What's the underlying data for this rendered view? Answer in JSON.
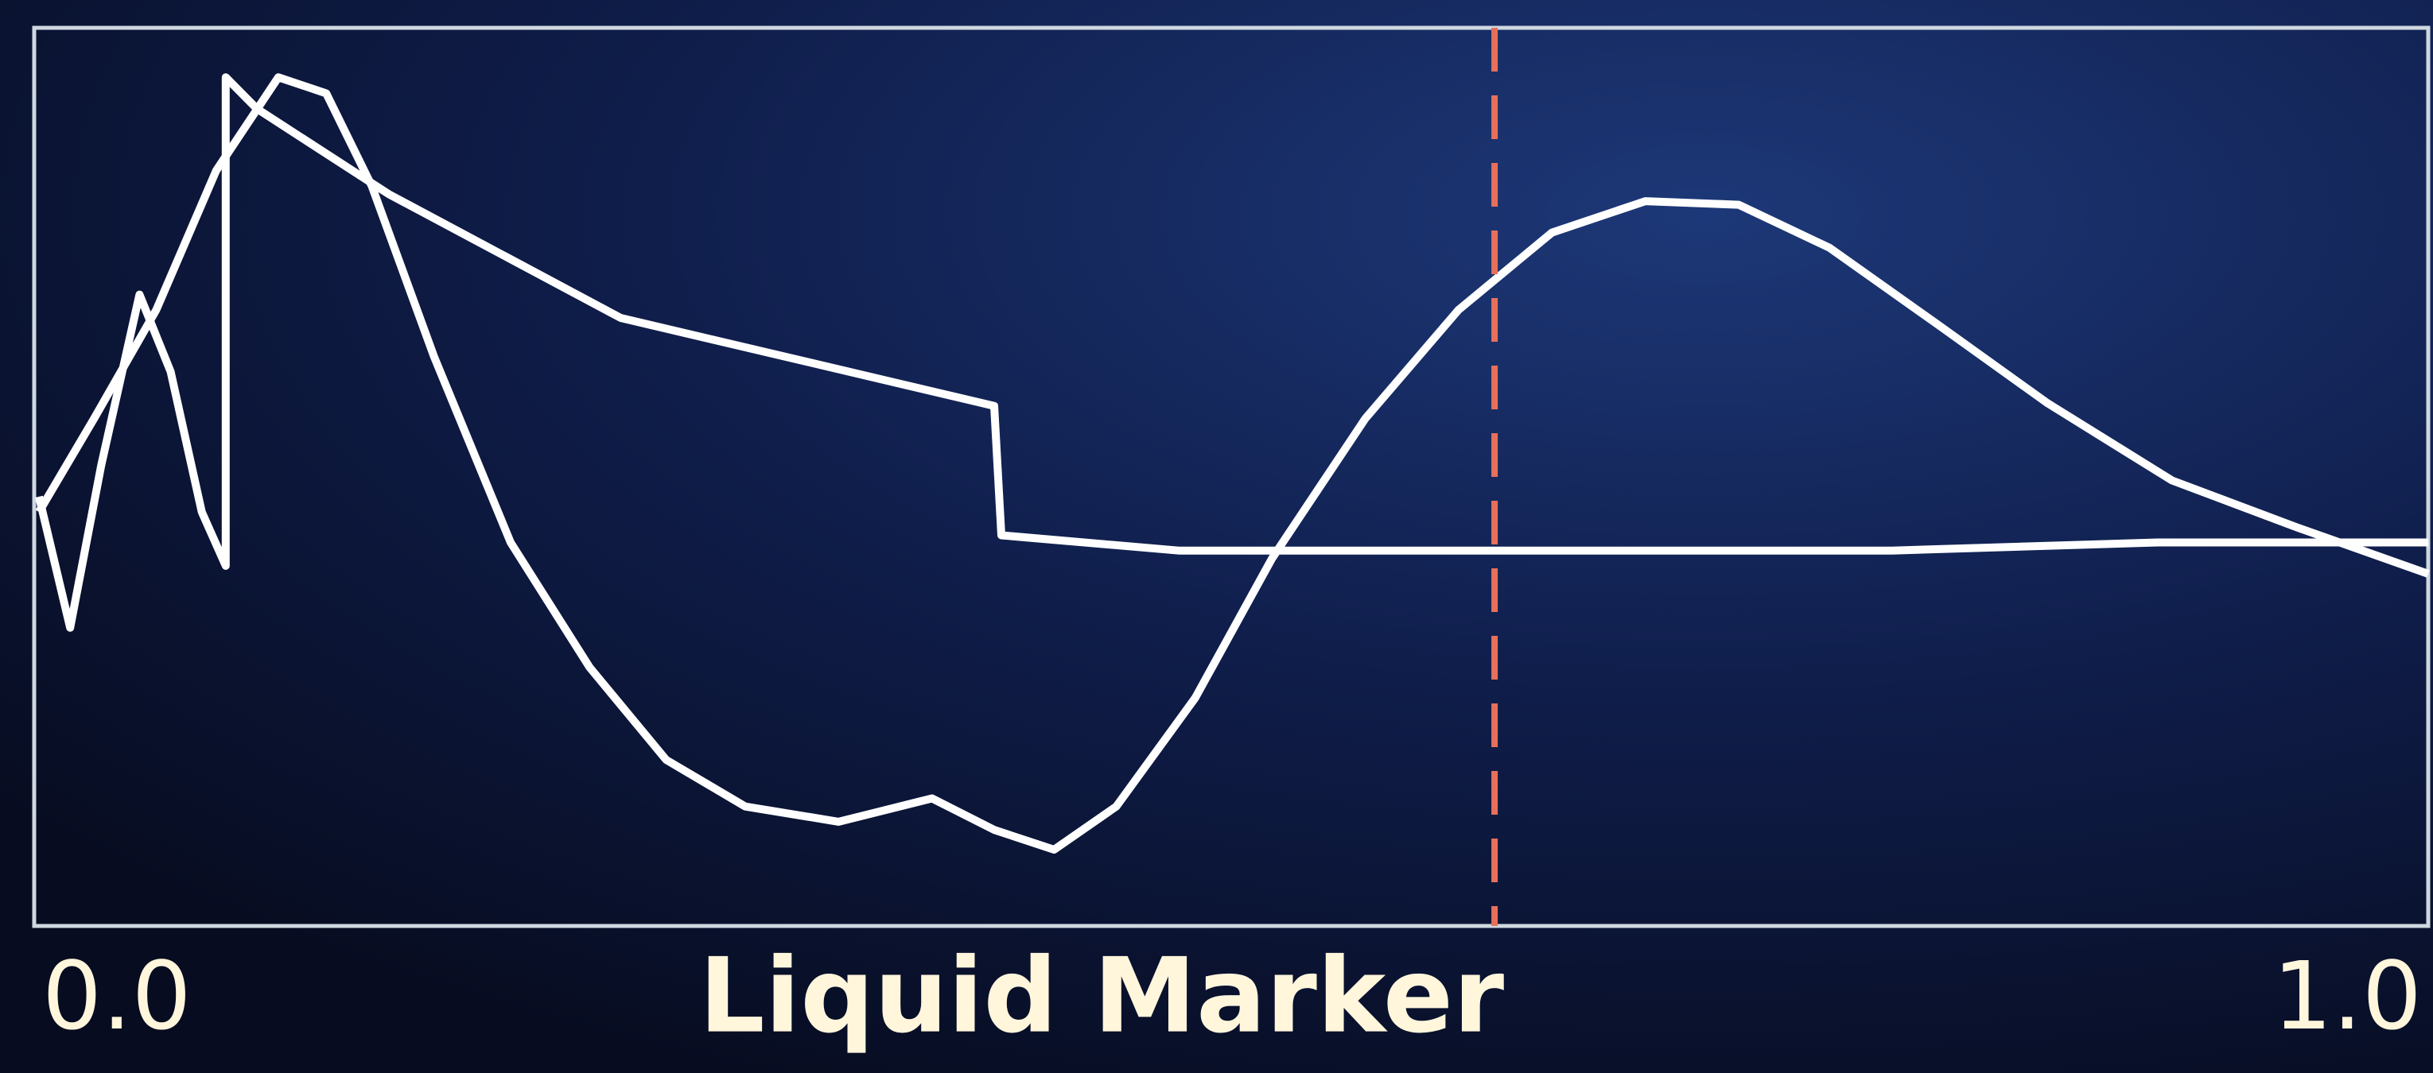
{
  "chart_data": {
    "type": "line",
    "xlabel": "Liquid Marker",
    "xlim": [
      0,
      1
    ],
    "xticks": [
      {
        "value": 0,
        "label": "0.0"
      },
      {
        "value": 1,
        "label": "1.0"
      }
    ],
    "ylim": [
      0,
      1
    ],
    "marker_x": 0.61,
    "marker_color": "#e8705a",
    "series": [
      {
        "color": "#ffffff",
        "x": [
          0.002,
          0.025,
          0.051,
          0.076,
          0.102,
          0.122,
          0.141,
          0.167,
          0.199,
          0.232,
          0.264,
          0.297,
          0.336,
          0.375,
          0.401,
          0.426,
          0.452,
          0.485,
          0.517,
          0.556,
          0.595,
          0.634,
          0.673,
          0.712,
          0.75,
          0.796,
          0.841,
          0.893,
          0.945,
          1.0
        ],
        "values": [
          0.461,
          0.565,
          0.686,
          0.841,
          0.945,
          0.927,
          0.824,
          0.634,
          0.427,
          0.288,
          0.185,
          0.133,
          0.116,
          0.142,
          0.107,
          0.085,
          0.133,
          0.254,
          0.409,
          0.565,
          0.686,
          0.772,
          0.807,
          0.803,
          0.755,
          0.668,
          0.582,
          0.496,
          0.444,
          0.392
        ]
      },
      {
        "color": "#ffffff",
        "x": [
          0.002,
          0.015,
          0.028,
          0.044,
          0.057,
          0.07,
          0.08,
          0.08,
          0.093,
          0.148,
          0.245,
          0.401,
          0.404,
          0.478,
          0.776,
          0.887,
          1.0
        ],
        "values": [
          0.478,
          0.332,
          0.513,
          0.703,
          0.617,
          0.461,
          0.401,
          0.945,
          0.91,
          0.815,
          0.677,
          0.579,
          0.435,
          0.418,
          0.418,
          0.427,
          0.427
        ]
      }
    ]
  }
}
